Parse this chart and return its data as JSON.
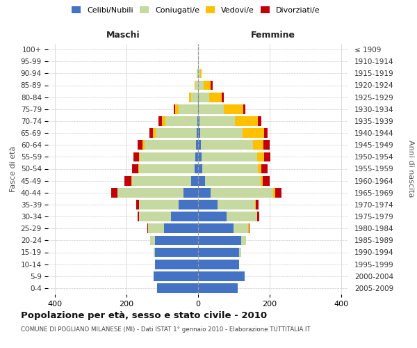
{
  "age_groups": [
    "0-4",
    "5-9",
    "10-14",
    "15-19",
    "20-24",
    "25-29",
    "30-34",
    "35-39",
    "40-44",
    "45-49",
    "50-54",
    "55-59",
    "60-64",
    "65-69",
    "70-74",
    "75-79",
    "80-84",
    "85-89",
    "90-94",
    "95-99",
    "100+"
  ],
  "birth_years": [
    "2005-2009",
    "2000-2004",
    "1995-1999",
    "1990-1994",
    "1985-1989",
    "1980-1984",
    "1975-1979",
    "1970-1974",
    "1965-1969",
    "1960-1964",
    "1955-1959",
    "1950-1954",
    "1945-1949",
    "1940-1944",
    "1935-1939",
    "1930-1934",
    "1925-1929",
    "1920-1924",
    "1915-1919",
    "1910-1914",
    "≤ 1909"
  ],
  "males": {
    "celibi": [
      115,
      125,
      120,
      120,
      120,
      95,
      75,
      55,
      40,
      20,
      10,
      8,
      5,
      3,
      2,
      0,
      0,
      0,
      0,
      0,
      0
    ],
    "coniugati": [
      0,
      0,
      0,
      5,
      15,
      45,
      90,
      110,
      185,
      165,
      155,
      155,
      145,
      115,
      90,
      55,
      20,
      8,
      3,
      0,
      0
    ],
    "vedovi": [
      0,
      0,
      0,
      0,
      0,
      0,
      0,
      1,
      1,
      1,
      2,
      3,
      5,
      8,
      10,
      10,
      5,
      2,
      0,
      0,
      0
    ],
    "divorziati": [
      0,
      0,
      0,
      0,
      0,
      2,
      5,
      8,
      18,
      20,
      18,
      15,
      15,
      10,
      8,
      3,
      0,
      0,
      0,
      0,
      0
    ]
  },
  "females": {
    "nubili": [
      110,
      130,
      115,
      115,
      120,
      100,
      80,
      55,
      35,
      20,
      12,
      10,
      8,
      5,
      3,
      2,
      2,
      0,
      0,
      0,
      0
    ],
    "coniugate": [
      0,
      0,
      0,
      5,
      15,
      40,
      85,
      105,
      175,
      155,
      155,
      155,
      145,
      120,
      100,
      70,
      30,
      15,
      5,
      1,
      0
    ],
    "vedove": [
      0,
      0,
      0,
      0,
      0,
      1,
      1,
      2,
      5,
      5,
      10,
      20,
      30,
      60,
      65,
      55,
      35,
      20,
      5,
      0,
      0
    ],
    "divorziate": [
      0,
      0,
      0,
      0,
      0,
      2,
      5,
      8,
      18,
      20,
      18,
      18,
      18,
      10,
      8,
      5,
      5,
      5,
      0,
      0,
      0
    ]
  },
  "colors": {
    "celibi": "#4472c4",
    "coniugati": "#c5d9a0",
    "vedovi": "#ffc000",
    "divorziati": "#c0000b"
  },
  "xlim": 420,
  "xticks": [
    -400,
    -200,
    0,
    200,
    400
  ],
  "title": "Popolazione per età, sesso e stato civile - 2010",
  "subtitle": "COMUNE DI POGLIANO MILANESE (MI) - Dati ISTAT 1° gennaio 2010 - Elaborazione TUTTITALIA.IT",
  "ylabel_left": "Fasce di età",
  "ylabel_right": "Anni di nascita",
  "xlabel_left": "Maschi",
  "xlabel_right": "Femmine",
  "bg_color": "#ffffff",
  "grid_color": "#cccccc"
}
